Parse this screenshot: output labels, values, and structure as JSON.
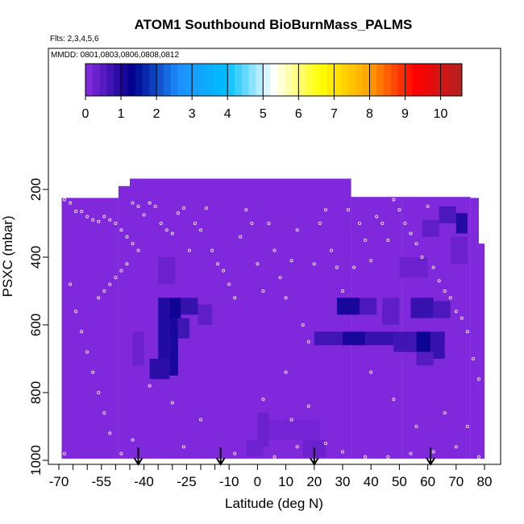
{
  "chart_data": {
    "type": "heatmap",
    "title": "ATOM1 Southbound BioBurnMass_PALMS",
    "annotations": {
      "flights": "Flts: 2,3,4,5,6",
      "dates": "MMDD: 0801,0803,0806,0808,0812"
    },
    "xlabel": "Latitude (deg N)",
    "ylabel": "PSXC (mbar)",
    "xlim": [
      -70,
      80
    ],
    "ylim": [
      1000,
      100
    ],
    "x_ticks": [
      "-70",
      "-55",
      "-40",
      "-25",
      "-10",
      "0",
      "10",
      "20",
      "30",
      "40",
      "50",
      "60",
      "70",
      "80"
    ],
    "x_tick_values": [
      -70,
      -55,
      -40,
      -25,
      -10,
      0,
      10,
      20,
      30,
      40,
      50,
      60,
      70,
      80
    ],
    "y_ticks": [
      "200",
      "400",
      "600",
      "800",
      "1000"
    ],
    "y_tick_values": [
      200,
      400,
      600,
      800,
      1000
    ],
    "colorbar": {
      "min": 0,
      "max": 10.6,
      "ticks": [
        "0",
        "1",
        "2",
        "3",
        "4",
        "5",
        "6",
        "7",
        "8",
        "9",
        "10"
      ],
      "tick_values": [
        0,
        1,
        2,
        3,
        4,
        5,
        6,
        7,
        8,
        9,
        10
      ],
      "colors": [
        "#8a2be2",
        "#00008b",
        "#1e90ff",
        "#00bfff",
        "#ffffff",
        "#ffff00",
        "#ffa500",
        "#ff0000",
        "#b22222"
      ]
    },
    "background_value": 0.1,
    "coverage": [
      {
        "x0": -69,
        "x1": -49,
        "p_top": 225,
        "p_bot": 995
      },
      {
        "x0": -49,
        "x1": -45,
        "p_top": 190,
        "p_bot": 995
      },
      {
        "x0": -45,
        "x1": 33,
        "p_top": 168,
        "p_bot": 995
      },
      {
        "x0": 33,
        "x1": 51,
        "p_top": 222,
        "p_bot": 995
      },
      {
        "x0": 51,
        "x1": 75,
        "p_top": 222,
        "p_bot": 995
      },
      {
        "x0": 75,
        "x1": 78,
        "p_top": 225,
        "p_bot": 995
      },
      {
        "x0": 78,
        "x1": 80,
        "p_top": 360,
        "p_bot": 995
      }
    ],
    "enhanced_cells": [
      {
        "x0": -35,
        "x1": -31,
        "p0": 520,
        "p1": 700,
        "v": 1.0
      },
      {
        "x0": -31,
        "x1": -27,
        "p0": 520,
        "p1": 580,
        "v": 1.2
      },
      {
        "x0": -27,
        "x1": -21,
        "p0": 520,
        "p1": 570,
        "v": 0.8
      },
      {
        "x0": -31,
        "x1": -28,
        "p0": 580,
        "p1": 750,
        "v": 1.1
      },
      {
        "x0": -28,
        "x1": -24,
        "p0": 580,
        "p1": 640,
        "v": 0.7
      },
      {
        "x0": -38,
        "x1": -31,
        "p0": 700,
        "p1": 760,
        "v": 0.9
      },
      {
        "x0": -21,
        "x1": -16,
        "p0": 540,
        "p1": 600,
        "v": 0.4
      },
      {
        "x0": -35,
        "x1": -29,
        "p0": 400,
        "p1": 480,
        "v": 0.3
      },
      {
        "x0": -44,
        "x1": -40,
        "p0": 620,
        "p1": 720,
        "v": 0.3
      },
      {
        "x0": 28,
        "x1": 36,
        "p0": 520,
        "p1": 570,
        "v": 1.1
      },
      {
        "x0": 36,
        "x1": 42,
        "p0": 520,
        "p1": 570,
        "v": 0.6
      },
      {
        "x0": 20,
        "x1": 30,
        "p0": 620,
        "p1": 660,
        "v": 0.7
      },
      {
        "x0": 30,
        "x1": 38,
        "p0": 620,
        "p1": 660,
        "v": 1.1
      },
      {
        "x0": 38,
        "x1": 48,
        "p0": 620,
        "p1": 660,
        "v": 0.8
      },
      {
        "x0": 48,
        "x1": 56,
        "p0": 620,
        "p1": 680,
        "v": 0.7
      },
      {
        "x0": 56,
        "x1": 61,
        "p0": 620,
        "p1": 680,
        "v": 1.2
      },
      {
        "x0": 61,
        "x1": 66,
        "p0": 620,
        "p1": 700,
        "v": 0.8
      },
      {
        "x0": 54,
        "x1": 62,
        "p0": 520,
        "p1": 580,
        "v": 0.8
      },
      {
        "x0": 62,
        "x1": 68,
        "p0": 530,
        "p1": 580,
        "v": 0.6
      },
      {
        "x0": 44,
        "x1": 50,
        "p0": 520,
        "p1": 600,
        "v": 0.4
      },
      {
        "x0": 56,
        "x1": 62,
        "p0": 680,
        "p1": 720,
        "v": 0.5
      },
      {
        "x0": 64,
        "x1": 70,
        "p0": 250,
        "p1": 300,
        "v": 0.6
      },
      {
        "x0": 70,
        "x1": 74,
        "p0": 270,
        "p1": 330,
        "v": 1.0
      },
      {
        "x0": 58,
        "x1": 64,
        "p0": 290,
        "p1": 340,
        "v": 0.4
      },
      {
        "x0": 68,
        "x1": 74,
        "p0": 340,
        "p1": 420,
        "v": 0.3
      },
      {
        "x0": 50,
        "x1": 60,
        "p0": 400,
        "p1": 460,
        "v": 0.3
      },
      {
        "x0": 0,
        "x1": 4,
        "p0": 860,
        "p1": 960,
        "v": 0.3
      },
      {
        "x0": 4,
        "x1": 22,
        "p0": 880,
        "p1": 940,
        "v": 0.2
      },
      {
        "x0": -4,
        "x1": 2,
        "p0": 940,
        "p1": 990,
        "v": 0.25
      },
      {
        "x0": 16,
        "x1": 24,
        "p0": 940,
        "p1": 990,
        "v": 0.3
      }
    ],
    "sample_points": [
      [
        -68,
        230
      ],
      [
        -66,
        240
      ],
      [
        -64,
        265
      ],
      [
        -62,
        265
      ],
      [
        -60,
        280
      ],
      [
        -58,
        290
      ],
      [
        -56,
        295
      ],
      [
        -54,
        280
      ],
      [
        -52,
        290
      ],
      [
        -50,
        300
      ],
      [
        -48,
        320
      ],
      [
        -46,
        340
      ],
      [
        -44,
        360
      ],
      [
        -42,
        380
      ],
      [
        -46,
        420
      ],
      [
        -48,
        440
      ],
      [
        -50,
        460
      ],
      [
        -52,
        480
      ],
      [
        -54,
        500
      ],
      [
        -56,
        520
      ],
      [
        -44,
        240
      ],
      [
        -42,
        250
      ],
      [
        -40,
        275
      ],
      [
        -38,
        240
      ],
      [
        -36,
        250
      ],
      [
        -34,
        300
      ],
      [
        -32,
        320
      ],
      [
        -30,
        330
      ],
      [
        -28,
        270
      ],
      [
        -26,
        255
      ],
      [
        -24,
        380
      ],
      [
        -22,
        300
      ],
      [
        -20,
        320
      ],
      [
        -18,
        255
      ],
      [
        -16,
        380
      ],
      [
        -14,
        420
      ],
      [
        -12,
        440
      ],
      [
        -10,
        480
      ],
      [
        -8,
        520
      ],
      [
        -6,
        340
      ],
      [
        -4,
        260
      ],
      [
        -2,
        300
      ],
      [
        0,
        420
      ],
      [
        2,
        500
      ],
      [
        4,
        300
      ],
      [
        6,
        380
      ],
      [
        8,
        460
      ],
      [
        10,
        520
      ],
      [
        12,
        410
      ],
      [
        14,
        320
      ],
      [
        16,
        600
      ],
      [
        18,
        650
      ],
      [
        20,
        420
      ],
      [
        22,
        300
      ],
      [
        24,
        260
      ],
      [
        26,
        380
      ],
      [
        28,
        430
      ],
      [
        30,
        500
      ],
      [
        32,
        260
      ],
      [
        34,
        430
      ],
      [
        36,
        300
      ],
      [
        38,
        350
      ],
      [
        40,
        410
      ],
      [
        42,
        280
      ],
      [
        44,
        300
      ],
      [
        46,
        350
      ],
      [
        48,
        230
      ],
      [
        50,
        260
      ],
      [
        52,
        300
      ],
      [
        54,
        330
      ],
      [
        56,
        360
      ],
      [
        58,
        400
      ],
      [
        60,
        250
      ],
      [
        62,
        430
      ],
      [
        64,
        470
      ],
      [
        66,
        500
      ],
      [
        68,
        520
      ],
      [
        70,
        560
      ],
      [
        72,
        580
      ],
      [
        74,
        620
      ],
      [
        76,
        700
      ],
      [
        78,
        760
      ],
      [
        -66,
        480
      ],
      [
        -64,
        560
      ],
      [
        -62,
        620
      ],
      [
        -60,
        680
      ],
      [
        -58,
        740
      ],
      [
        -56,
        800
      ],
      [
        -54,
        860
      ],
      [
        -52,
        920
      ],
      [
        -44,
        940
      ],
      [
        -38,
        780
      ],
      [
        -30,
        830
      ],
      [
        -20,
        880
      ],
      [
        -8,
        980
      ],
      [
        6,
        990
      ],
      [
        12,
        880
      ],
      [
        18,
        840
      ],
      [
        24,
        950
      ],
      [
        30,
        975
      ],
      [
        38,
        990
      ],
      [
        46,
        990
      ],
      [
        54,
        980
      ],
      [
        62,
        975
      ],
      [
        70,
        960
      ],
      [
        78,
        990
      ],
      [
        -48,
        980
      ],
      [
        -26,
        960
      ],
      [
        2,
        820
      ],
      [
        10,
        740
      ],
      [
        14,
        960
      ],
      [
        -68,
        980
      ],
      [
        40,
        740
      ],
      [
        48,
        820
      ],
      [
        56,
        900
      ],
      [
        66,
        860
      ],
      [
        74,
        900
      ]
    ],
    "flight_markers_lat": [
      -42,
      -13,
      20,
      61
    ]
  }
}
